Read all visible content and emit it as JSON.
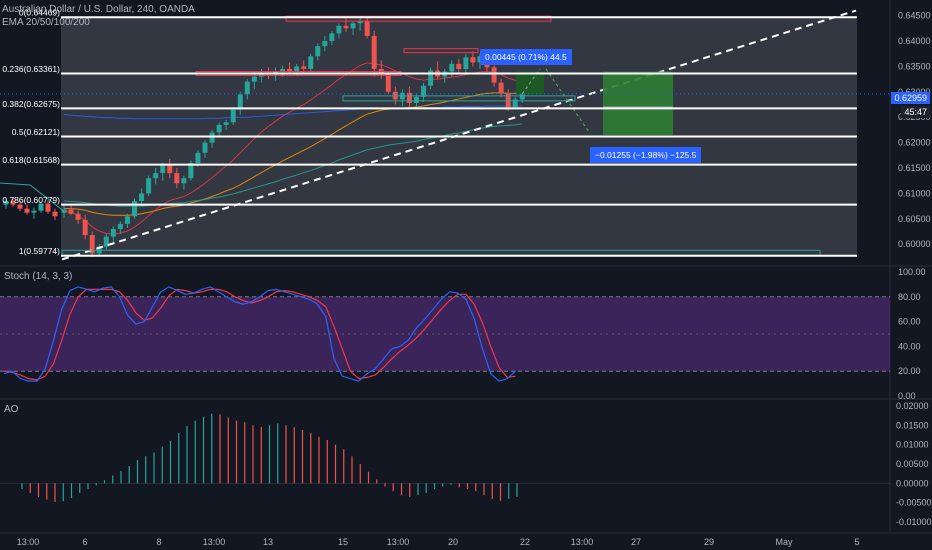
{
  "header": {
    "symbol": "Australian Dollar / U.S. Dollar, 240, OANDA",
    "ema": "EMA 20/50/100/200"
  },
  "panes": {
    "stoch_title": "Stoch (14, 3, 3)",
    "ao_title": "AO"
  },
  "colors": {
    "bg": "#131722",
    "grid": "#2a2e39",
    "axis_text": "#b2b5be",
    "up": "#26a69a",
    "down": "#ef5350",
    "fib": "#ffffff",
    "ema20": "#f23645",
    "ema50": "#ff9800",
    "ema100": "#26a69a",
    "ema200": "#2962ff",
    "stoch_k": "#2962ff",
    "stoch_d": "#f23645",
    "stoch_band": "#4a2a6e",
    "target": "#1b5e20",
    "pos_label": "#2962ff",
    "current": "#2962ff"
  },
  "price_axis": {
    "labels": [
      "0.64500",
      "0.64000",
      "0.63500",
      "0.63000",
      "0.62500",
      "0.62000",
      "0.61500",
      "0.61000",
      "0.60500",
      "0.60000"
    ],
    "current_price": "0.62959",
    "countdown": "45:47"
  },
  "stoch_axis": {
    "labels": [
      "100.00",
      "80.00",
      "60.00",
      "40.00",
      "20.00",
      "0.00"
    ]
  },
  "ao_axis": {
    "labels": [
      "0.02000",
      "0.01500",
      "0.01000",
      "0.00500",
      "0.00000",
      "-0.00500",
      "-0.01000"
    ]
  },
  "time_axis": {
    "labels": [
      "13:00",
      "6",
      "8",
      "13:00",
      "13",
      "15",
      "13:00",
      "20",
      "22",
      "13:00",
      "27",
      "29",
      "May",
      "5"
    ]
  },
  "fib_levels": [
    {
      "label": "0(0.64469)",
      "price": 0.64469
    },
    {
      "label": "0.236(0.63361)",
      "price": 0.63361
    },
    {
      "label": "0.382(0.62675)",
      "price": 0.62675
    },
    {
      "label": "0.5(0.62121)",
      "price": 0.62121
    },
    {
      "label": "0.618(0.61568)",
      "price": 0.61568
    },
    {
      "label": "0.786(0.60779)",
      "price": 0.60779
    },
    {
      "label": "1(0.59774)",
      "price": 0.59774
    }
  ],
  "positions": {
    "long_label": "0.00445 (0.71%) 44.5",
    "short_label": "−0.01255 (−1.98%) −125.5"
  },
  "chart_data": {
    "type": "candlestick",
    "title": "Australian Dollar / U.S. Dollar, 240, OANDA",
    "ylim": [
      0.5965,
      0.6465
    ],
    "candles": [
      [
        0.6062,
        0.6078,
        0.6052,
        0.6068
      ],
      [
        0.6068,
        0.608,
        0.6058,
        0.606
      ],
      [
        0.606,
        0.6066,
        0.604,
        0.6048
      ],
      [
        0.6048,
        0.6058,
        0.601,
        0.6018
      ],
      [
        0.6018,
        0.6025,
        0.5975,
        0.5982
      ],
      [
        0.5982,
        0.6,
        0.5977,
        0.5995
      ],
      [
        0.5995,
        0.602,
        0.599,
        0.6015
      ],
      [
        0.6015,
        0.6035,
        0.6005,
        0.603
      ],
      [
        0.603,
        0.6045,
        0.602,
        0.604
      ],
      [
        0.604,
        0.606,
        0.6032,
        0.6055
      ],
      [
        0.6055,
        0.609,
        0.605,
        0.6085
      ],
      [
        0.6085,
        0.611,
        0.6075,
        0.61
      ],
      [
        0.61,
        0.6135,
        0.6095,
        0.613
      ],
      [
        0.613,
        0.615,
        0.6118,
        0.614
      ],
      [
        0.614,
        0.616,
        0.6125,
        0.6155
      ],
      [
        0.6155,
        0.6168,
        0.613,
        0.614
      ],
      [
        0.614,
        0.615,
        0.611,
        0.612
      ],
      [
        0.612,
        0.6135,
        0.6108,
        0.613
      ],
      [
        0.613,
        0.6165,
        0.6125,
        0.616
      ],
      [
        0.616,
        0.6185,
        0.6152,
        0.618
      ],
      [
        0.618,
        0.6205,
        0.617,
        0.62
      ],
      [
        0.62,
        0.6225,
        0.619,
        0.622
      ],
      [
        0.622,
        0.624,
        0.621,
        0.6235
      ],
      [
        0.6235,
        0.6245,
        0.6225,
        0.624
      ],
      [
        0.624,
        0.627,
        0.6235,
        0.6265
      ],
      [
        0.6265,
        0.63,
        0.6255,
        0.6295
      ],
      [
        0.6295,
        0.6325,
        0.6285,
        0.632
      ],
      [
        0.632,
        0.634,
        0.6305,
        0.633
      ],
      [
        0.633,
        0.6345,
        0.6318,
        0.6338
      ],
      [
        0.6338,
        0.6348,
        0.6325,
        0.6335
      ],
      [
        0.6335,
        0.6348,
        0.6322,
        0.634
      ],
      [
        0.634,
        0.6352,
        0.633,
        0.6345
      ],
      [
        0.6345,
        0.6358,
        0.6335,
        0.634
      ],
      [
        0.634,
        0.6355,
        0.6332,
        0.635
      ],
      [
        0.635,
        0.6362,
        0.6338,
        0.6345
      ],
      [
        0.6345,
        0.6375,
        0.634,
        0.637
      ],
      [
        0.637,
        0.6395,
        0.6362,
        0.639
      ],
      [
        0.639,
        0.641,
        0.638,
        0.64
      ],
      [
        0.64,
        0.642,
        0.6392,
        0.6415
      ],
      [
        0.6415,
        0.6435,
        0.6405,
        0.643
      ],
      [
        0.643,
        0.6445,
        0.6418,
        0.6425
      ],
      [
        0.6425,
        0.644,
        0.6412,
        0.6435
      ],
      [
        0.6435,
        0.6447,
        0.642,
        0.644
      ],
      [
        0.644,
        0.6447,
        0.6405,
        0.641
      ],
      [
        0.641,
        0.642,
        0.633,
        0.6345
      ],
      [
        0.6345,
        0.6362,
        0.6325,
        0.6335
      ],
      [
        0.6335,
        0.634,
        0.6295,
        0.63
      ],
      [
        0.63,
        0.631,
        0.6275,
        0.6285
      ],
      [
        0.6285,
        0.6305,
        0.6272,
        0.6298
      ],
      [
        0.6298,
        0.631,
        0.627,
        0.6278
      ],
      [
        0.6278,
        0.6295,
        0.6268,
        0.629
      ],
      [
        0.629,
        0.6318,
        0.628,
        0.6312
      ],
      [
        0.6312,
        0.6348,
        0.6305,
        0.6342
      ],
      [
        0.6342,
        0.636,
        0.6325,
        0.633
      ],
      [
        0.633,
        0.6345,
        0.6318,
        0.634
      ],
      [
        0.634,
        0.6362,
        0.633,
        0.6355
      ],
      [
        0.6355,
        0.6365,
        0.6335,
        0.6345
      ],
      [
        0.6345,
        0.6375,
        0.6338,
        0.6368
      ],
      [
        0.6368,
        0.638,
        0.635,
        0.6358
      ],
      [
        0.6358,
        0.6375,
        0.6345,
        0.637
      ],
      [
        0.637,
        0.6378,
        0.634,
        0.6348
      ],
      [
        0.6348,
        0.6352,
        0.631,
        0.6318
      ],
      [
        0.6318,
        0.6325,
        0.629,
        0.6298
      ],
      [
        0.6298,
        0.6305,
        0.6262,
        0.627
      ],
      [
        0.627,
        0.629,
        0.6265,
        0.6285
      ],
      [
        0.6285,
        0.6302,
        0.6278,
        0.6296
      ]
    ],
    "ema20": [
      0.6065,
      0.6063,
      0.6057,
      0.6047,
      0.6034,
      0.6026,
      0.6021,
      0.602,
      0.6022,
      0.6026,
      0.6034,
      0.6044,
      0.6056,
      0.6068,
      0.6079,
      0.6086,
      0.609,
      0.6094,
      0.6101,
      0.611,
      0.612,
      0.6131,
      0.6143,
      0.6154,
      0.6166,
      0.618,
      0.6194,
      0.6208,
      0.6221,
      0.6232,
      0.6242,
      0.6252,
      0.626,
      0.6268,
      0.6275,
      0.6284,
      0.6294,
      0.6304,
      0.6314,
      0.6325,
      0.6334,
      0.6343,
      0.6352,
      0.6357,
      0.6355,
      0.6353,
      0.6348,
      0.6341,
      0.6336,
      0.633,
      0.6325,
      0.6323,
      0.6325,
      0.6325,
      0.6327,
      0.6329,
      0.6331,
      0.6334,
      0.6336,
      0.6339,
      0.634,
      0.6338,
      0.6334,
      0.6327,
      0.6323,
      0.632
    ],
    "ema50": [
      0.607,
      0.607,
      0.6069,
      0.6067,
      0.6063,
      0.606,
      0.6058,
      0.6057,
      0.6057,
      0.6057,
      0.6058,
      0.606,
      0.6063,
      0.6066,
      0.607,
      0.6073,
      0.6075,
      0.6077,
      0.6081,
      0.6085,
      0.6089,
      0.6094,
      0.6099,
      0.6105,
      0.611,
      0.6117,
      0.6125,
      0.6133,
      0.6141,
      0.6149,
      0.6156,
      0.6164,
      0.6171,
      0.6178,
      0.6185,
      0.6192,
      0.62,
      0.6208,
      0.6216,
      0.6225,
      0.6233,
      0.6241,
      0.6249,
      0.6256,
      0.626,
      0.6264,
      0.6266,
      0.6267,
      0.6268,
      0.6269,
      0.627,
      0.6272,
      0.6275,
      0.6277,
      0.628,
      0.6283,
      0.6286,
      0.6289,
      0.6292,
      0.6295,
      0.6297,
      0.6298,
      0.6298,
      0.6297,
      0.6297,
      0.6297
    ],
    "ema100": [
      0.6085,
      0.6084,
      0.6083,
      0.6082,
      0.608,
      0.6078,
      0.6077,
      0.6076,
      0.6075,
      0.6075,
      0.6075,
      0.6075,
      0.6076,
      0.6077,
      0.6078,
      0.608,
      0.6081,
      0.6082,
      0.6084,
      0.6086,
      0.6088,
      0.6091,
      0.6093,
      0.6096,
      0.6099,
      0.6103,
      0.6107,
      0.6111,
      0.6115,
      0.6119,
      0.6123,
      0.6128,
      0.6132,
      0.6136,
      0.6141,
      0.6145,
      0.615,
      0.6155,
      0.616,
      0.6166,
      0.6171,
      0.6176,
      0.6181,
      0.6186,
      0.6189,
      0.6192,
      0.6195,
      0.6197,
      0.6199,
      0.6201,
      0.6203,
      0.6206,
      0.6209,
      0.6211,
      0.6214,
      0.6217,
      0.6219,
      0.6222,
      0.6225,
      0.6228,
      0.623,
      0.6232,
      0.6233,
      0.6234,
      0.6235,
      0.6237
    ],
    "ema200": [
      0.6255,
      0.6254,
      0.6253,
      0.6252,
      0.6251,
      0.625,
      0.6249,
      0.6249,
      0.6248,
      0.6248,
      0.6247,
      0.6247,
      0.6247,
      0.6247,
      0.6247,
      0.6247,
      0.6247,
      0.6247,
      0.6247,
      0.6247,
      0.6248,
      0.6248,
      0.6248,
      0.6249,
      0.6249,
      0.625,
      0.625,
      0.6251,
      0.6252,
      0.6253,
      0.6254,
      0.6255,
      0.6256,
      0.6257,
      0.6258,
      0.6259,
      0.626,
      0.6261,
      0.6262,
      0.6263,
      0.6264,
      0.6265,
      0.6266,
      0.6267,
      0.6267,
      0.6268,
      0.6268,
      0.6268,
      0.6268,
      0.6268,
      0.6268,
      0.6269,
      0.6269,
      0.6269,
      0.627,
      0.627,
      0.627,
      0.6271,
      0.6271,
      0.6271,
      0.6272,
      0.6272,
      0.6272,
      0.6272,
      0.6272,
      0.6272
    ],
    "stoch_k": [
      18,
      20,
      14,
      12,
      12,
      22,
      45,
      70,
      85,
      88,
      86,
      84,
      87,
      88,
      80,
      65,
      58,
      60,
      72,
      84,
      88,
      85,
      82,
      83,
      86,
      88,
      84,
      80,
      76,
      74,
      76,
      80,
      85,
      86,
      84,
      82,
      80,
      78,
      74,
      64,
      30,
      16,
      14,
      12,
      18,
      22,
      30,
      38,
      40,
      45,
      55,
      62,
      70,
      78,
      84,
      83,
      78,
      62,
      38,
      18,
      12,
      14,
      20
    ],
    "stoch_d": [
      20,
      19,
      17,
      14,
      13,
      16,
      26,
      45,
      66,
      80,
      86,
      86,
      86,
      86,
      84,
      77,
      67,
      61,
      63,
      71,
      81,
      86,
      85,
      83,
      84,
      86,
      86,
      84,
      80,
      77,
      75,
      77,
      80,
      84,
      85,
      84,
      82,
      80,
      77,
      72,
      56,
      38,
      20,
      14,
      15,
      17,
      23,
      30,
      36,
      41,
      47,
      54,
      62,
      70,
      77,
      82,
      82,
      74,
      59,
      40,
      23,
      15,
      16
    ],
    "ao": [
      -0.0015,
      -0.0025,
      -0.0035,
      -0.0042,
      -0.0048,
      -0.0046,
      -0.0038,
      -0.0025,
      -0.0015,
      -0.0005,
      0.0008,
      0.002,
      0.0032,
      0.0045,
      0.006,
      0.007,
      0.008,
      0.0095,
      0.011,
      0.013,
      0.0148,
      0.0162,
      0.0172,
      0.018,
      0.0178,
      0.017,
      0.0162,
      0.0158,
      0.015,
      0.0146,
      0.015,
      0.0155,
      0.015,
      0.0145,
      0.0138,
      0.013,
      0.012,
      0.0112,
      0.01,
      0.0088,
      0.007,
      0.005,
      0.003,
      0.001,
      -0.0008,
      -0.002,
      -0.003,
      -0.0035,
      -0.003,
      -0.0025,
      -0.0015,
      -0.0008,
      -0.0004,
      -0.001,
      -0.0015,
      -0.002,
      -0.003,
      -0.004,
      -0.0045,
      -0.004,
      -0.0035
    ]
  }
}
